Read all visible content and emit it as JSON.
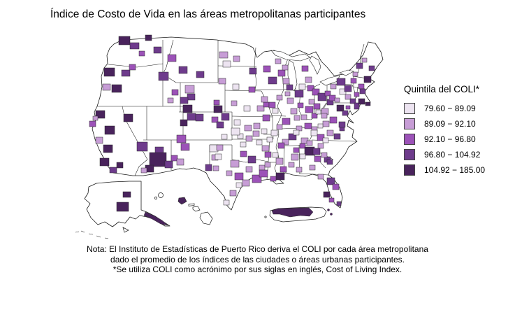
{
  "title": "Índice de Costo de Vida en las áreas metropolitanas participantes",
  "legend": {
    "title": "Quintila del COLI*",
    "entries": [
      {
        "label": "79.60 − 89.09",
        "color": "#EDE4F1"
      },
      {
        "label": "89.09 − 92.10",
        "color": "#C79DD6"
      },
      {
        "label": "92.10 − 96.80",
        "color": "#9C52B8"
      },
      {
        "label": "96.80 − 104.92",
        "color": "#6E3B8C"
      },
      {
        "label": "104.92 − 185.00",
        "color": "#49235C"
      }
    ]
  },
  "note_lines": [
    "Nota: El Instituto de Estadísticas de Puerto Rico deriva el COLI por cada área metropolitana",
    "dado el promedio de los índices de las ciudades o áreas urbanas participantes.",
    "*Se utiliza COLI como acrónimo por sus siglas en inglés, Cost of Living Index."
  ],
  "chart_data": {
    "type": "choropleth",
    "title": "Índice de Costo de Vida en las áreas metropolitanas participantes",
    "legend_title": "Quintila del COLI*",
    "classification": "quintiles",
    "quintiles": [
      {
        "q": 1,
        "range": "79.60 − 89.09",
        "color": "#EDE4F1"
      },
      {
        "q": 2,
        "range": "89.09 − 92.10",
        "color": "#C79DD6"
      },
      {
        "q": 3,
        "range": "92.10 − 96.80",
        "color": "#9C52B8"
      },
      {
        "q": 4,
        "range": "96.80 − 104.92",
        "color": "#6E3B8C"
      },
      {
        "q": 5,
        "range": "104.92 − 185.00",
        "color": "#49235C"
      }
    ],
    "geography": "Estados Unidos (48 estados contiguos, Alaska, Hawái y Puerto Rico)",
    "metro_patches": [
      [
        170,
        52,
        16,
        12,
        5
      ],
      [
        186,
        61,
        13,
        9,
        4
      ],
      [
        208,
        50,
        9,
        8,
        5
      ],
      [
        220,
        67,
        11,
        9,
        4
      ],
      [
        199,
        73,
        8,
        7,
        3
      ],
      [
        149,
        97,
        15,
        12,
        5
      ],
      [
        147,
        120,
        11,
        9,
        2
      ],
      [
        160,
        121,
        14,
        11,
        5
      ],
      [
        174,
        100,
        12,
        9,
        4
      ],
      [
        185,
        92,
        9,
        8,
        3
      ],
      [
        227,
        103,
        14,
        12,
        4
      ],
      [
        246,
        128,
        9,
        8,
        3
      ],
      [
        240,
        140,
        8,
        7,
        2
      ],
      [
        240,
        78,
        12,
        10,
        3
      ],
      [
        256,
        95,
        12,
        10,
        4
      ],
      [
        281,
        102,
        11,
        9,
        4
      ],
      [
        265,
        122,
        13,
        11,
        2
      ],
      [
        268,
        134,
        11,
        9,
        4
      ],
      [
        306,
        143,
        8,
        7,
        3
      ],
      [
        177,
        163,
        13,
        11,
        5
      ],
      [
        196,
        203,
        15,
        13,
        4
      ],
      [
        258,
        139,
        11,
        9,
        4
      ],
      [
        262,
        150,
        13,
        11,
        5
      ],
      [
        268,
        162,
        12,
        10,
        4
      ],
      [
        258,
        171,
        10,
        9,
        5
      ],
      [
        137,
        158,
        13,
        11,
        5
      ],
      [
        128,
        173,
        9,
        8,
        3
      ],
      [
        150,
        180,
        14,
        12,
        5
      ],
      [
        137,
        196,
        10,
        9,
        2
      ],
      [
        148,
        207,
        13,
        11,
        5
      ],
      [
        143,
        226,
        13,
        11,
        5
      ],
      [
        157,
        239,
        10,
        8,
        4
      ],
      [
        167,
        232,
        9,
        8,
        5
      ],
      [
        133,
        166,
        7,
        6,
        2
      ],
      [
        222,
        210,
        12,
        9,
        4
      ],
      [
        214,
        218,
        24,
        20,
        5
      ],
      [
        208,
        236,
        12,
        10,
        5
      ],
      [
        236,
        230,
        11,
        10,
        4
      ],
      [
        202,
        240,
        8,
        7,
        2
      ],
      [
        245,
        222,
        9,
        8,
        3
      ],
      [
        280,
        163,
        11,
        10,
        4
      ],
      [
        306,
        151,
        12,
        10,
        5
      ],
      [
        317,
        162,
        11,
        10,
        4
      ],
      [
        303,
        167,
        9,
        8,
        3
      ],
      [
        310,
        174,
        10,
        9,
        4
      ],
      [
        253,
        193,
        13,
        11,
        3
      ],
      [
        259,
        205,
        12,
        10,
        3
      ],
      [
        253,
        227,
        10,
        9,
        2
      ],
      [
        294,
        235,
        9,
        9,
        4
      ],
      [
        300,
        207,
        12,
        10,
        1
      ],
      [
        303,
        221,
        9,
        8,
        2
      ],
      [
        314,
        74,
        12,
        9,
        2
      ],
      [
        319,
        87,
        11,
        9,
        1
      ],
      [
        334,
        80,
        9,
        8,
        2
      ],
      [
        313,
        112,
        10,
        8,
        2
      ],
      [
        333,
        120,
        9,
        8,
        1
      ],
      [
        356,
        124,
        9,
        8,
        3
      ],
      [
        377,
        94,
        10,
        9,
        3
      ],
      [
        384,
        110,
        12,
        10,
        4
      ],
      [
        394,
        84,
        8,
        7,
        2
      ],
      [
        357,
        97,
        10,
        9,
        4
      ],
      [
        331,
        144,
        8,
        7,
        2
      ],
      [
        349,
        151,
        9,
        8,
        1
      ],
      [
        368,
        151,
        10,
        8,
        2
      ],
      [
        377,
        146,
        8,
        7,
        3
      ],
      [
        374,
        138,
        9,
        8,
        2
      ],
      [
        385,
        146,
        9,
        8,
        3
      ],
      [
        396,
        136,
        8,
        7,
        2
      ],
      [
        390,
        155,
        8,
        7,
        1
      ],
      [
        335,
        171,
        9,
        8,
        1
      ],
      [
        350,
        179,
        10,
        8,
        2
      ],
      [
        340,
        191,
        8,
        7,
        1
      ],
      [
        363,
        176,
        9,
        8,
        2
      ],
      [
        374,
        184,
        8,
        7,
        1
      ],
      [
        376,
        164,
        10,
        9,
        3
      ],
      [
        404,
        169,
        11,
        9,
        3
      ],
      [
        388,
        186,
        9,
        8,
        1
      ],
      [
        396,
        178,
        8,
        7,
        2
      ],
      [
        382,
        196,
        8,
        7,
        1
      ],
      [
        331,
        183,
        12,
        10,
        1
      ],
      [
        352,
        194,
        9,
        8,
        2
      ],
      [
        362,
        187,
        9,
        8,
        2
      ],
      [
        344,
        203,
        8,
        7,
        1
      ],
      [
        317,
        192,
        8,
        7,
        1
      ],
      [
        310,
        207,
        9,
        8,
        2
      ],
      [
        308,
        220,
        9,
        8,
        1
      ],
      [
        305,
        237,
        8,
        7,
        2
      ],
      [
        330,
        229,
        12,
        10,
        2
      ],
      [
        355,
        223,
        11,
        10,
        4
      ],
      [
        344,
        216,
        9,
        8,
        3
      ],
      [
        336,
        247,
        12,
        10,
        3
      ],
      [
        347,
        257,
        10,
        9,
        2
      ],
      [
        361,
        250,
        13,
        11,
        3
      ],
      [
        329,
        272,
        9,
        8,
        2
      ],
      [
        320,
        286,
        8,
        7,
        1
      ],
      [
        371,
        236,
        8,
        7,
        2
      ],
      [
        338,
        261,
        8,
        7,
        1
      ],
      [
        324,
        244,
        8,
        7,
        2
      ],
      [
        352,
        238,
        9,
        8,
        2
      ],
      [
        398,
        100,
        10,
        9,
        3
      ],
      [
        405,
        112,
        9,
        8,
        2
      ],
      [
        410,
        121,
        9,
        8,
        4
      ],
      [
        404,
        93,
        8,
        7,
        2
      ],
      [
        422,
        129,
        12,
        10,
        4
      ],
      [
        411,
        140,
        9,
        8,
        2
      ],
      [
        416,
        155,
        9,
        8,
        2
      ],
      [
        426,
        147,
        8,
        7,
        3
      ],
      [
        408,
        131,
        7,
        6,
        2
      ],
      [
        421,
        165,
        8,
        7,
        2
      ],
      [
        432,
        94,
        9,
        8,
        3
      ],
      [
        437,
        110,
        9,
        8,
        2
      ],
      [
        428,
        120,
        9,
        8,
        1
      ],
      [
        440,
        122,
        9,
        8,
        3
      ],
      [
        447,
        127,
        10,
        9,
        3
      ],
      [
        437,
        152,
        11,
        9,
        3
      ],
      [
        431,
        164,
        8,
        7,
        2
      ],
      [
        442,
        142,
        8,
        7,
        2
      ],
      [
        446,
        162,
        8,
        7,
        3
      ],
      [
        455,
        133,
        12,
        11,
        4
      ],
      [
        449,
        148,
        9,
        8,
        3
      ],
      [
        460,
        155,
        10,
        9,
        2
      ],
      [
        468,
        142,
        9,
        8,
        4
      ],
      [
        465,
        130,
        8,
        7,
        3
      ],
      [
        436,
        176,
        10,
        8,
        3
      ],
      [
        446,
        181,
        8,
        7,
        2
      ],
      [
        424,
        180,
        8,
        7,
        2
      ],
      [
        413,
        191,
        11,
        9,
        4
      ],
      [
        404,
        199,
        9,
        8,
        2
      ],
      [
        431,
        197,
        10,
        8,
        2
      ],
      [
        429,
        205,
        8,
        7,
        3
      ],
      [
        398,
        204,
        9,
        8,
        3
      ],
      [
        420,
        186,
        8,
        7,
        1
      ],
      [
        375,
        208,
        10,
        8,
        2
      ],
      [
        379,
        217,
        9,
        8,
        3
      ],
      [
        367,
        200,
        8,
        7,
        1
      ],
      [
        395,
        226,
        10,
        9,
        2
      ],
      [
        401,
        238,
        9,
        8,
        3
      ],
      [
        390,
        218,
        8,
        7,
        1
      ],
      [
        417,
        220,
        10,
        9,
        2
      ],
      [
        420,
        211,
        8,
        7,
        3
      ],
      [
        413,
        232,
        8,
        7,
        2
      ],
      [
        424,
        239,
        8,
        7,
        2
      ],
      [
        371,
        243,
        12,
        10,
        3
      ],
      [
        395,
        247,
        12,
        10,
        5
      ],
      [
        387,
        252,
        8,
        7,
        3
      ],
      [
        379,
        232,
        8,
        7,
        2
      ],
      [
        436,
        210,
        14,
        12,
        5
      ],
      [
        450,
        223,
        9,
        8,
        3
      ],
      [
        443,
        236,
        8,
        7,
        2
      ],
      [
        464,
        224,
        9,
        8,
        4
      ],
      [
        455,
        205,
        8,
        7,
        2
      ],
      [
        429,
        220,
        8,
        7,
        1
      ],
      [
        468,
        254,
        11,
        10,
        4
      ],
      [
        476,
        263,
        9,
        8,
        3
      ],
      [
        463,
        274,
        9,
        8,
        5
      ],
      [
        471,
        283,
        7,
        6,
        3
      ],
      [
        482,
        288,
        6,
        6,
        4
      ],
      [
        455,
        249,
        8,
        7,
        2
      ],
      [
        448,
        212,
        10,
        9,
        4
      ],
      [
        460,
        218,
        8,
        7,
        2
      ],
      [
        468,
        228,
        8,
        7,
        4
      ],
      [
        445,
        186,
        9,
        8,
        1
      ],
      [
        454,
        192,
        10,
        9,
        3
      ],
      [
        468,
        186,
        9,
        8,
        2
      ],
      [
        478,
        191,
        9,
        8,
        4
      ],
      [
        486,
        181,
        7,
        6,
        4
      ],
      [
        439,
        201,
        8,
        7,
        2
      ],
      [
        462,
        197,
        8,
        7,
        1
      ],
      [
        472,
        167,
        10,
        9,
        3
      ],
      [
        485,
        174,
        9,
        8,
        4
      ],
      [
        462,
        173,
        9,
        8,
        2
      ],
      [
        455,
        177,
        7,
        6,
        1
      ],
      [
        460,
        162,
        8,
        7,
        2
      ],
      [
        452,
        157,
        7,
        6,
        1
      ],
      [
        482,
        150,
        10,
        9,
        5
      ],
      [
        490,
        158,
        8,
        7,
        4
      ],
      [
        495,
        151,
        6,
        5,
        3
      ],
      [
        486,
        127,
        9,
        8,
        1
      ],
      [
        494,
        135,
        8,
        7,
        2
      ],
      [
        471,
        136,
        9,
        8,
        3
      ],
      [
        501,
        141,
        8,
        7,
        4
      ],
      [
        479,
        140,
        7,
        6,
        2
      ],
      [
        507,
        147,
        7,
        9,
        4
      ],
      [
        482,
        112,
        12,
        10,
        4
      ],
      [
        493,
        122,
        10,
        9,
        4
      ],
      [
        473,
        120,
        8,
        7,
        2
      ],
      [
        513,
        141,
        9,
        8,
        5
      ],
      [
        523,
        146,
        7,
        5,
        5
      ],
      [
        502,
        112,
        8,
        7,
        3
      ],
      [
        510,
        90,
        9,
        8,
        4
      ],
      [
        518,
        83,
        7,
        6,
        2
      ],
      [
        521,
        109,
        10,
        9,
        5
      ],
      [
        513,
        120,
        8,
        7,
        3
      ],
      [
        515,
        127,
        8,
        7,
        4
      ],
      [
        507,
        132,
        7,
        6,
        3
      ],
      [
        528,
        94,
        8,
        7,
        4
      ],
      [
        505,
        103,
        7,
        6,
        2
      ],
      [
        176,
        274,
        11,
        8,
        5
      ],
      [
        167,
        289,
        17,
        13,
        5
      ]
    ]
  }
}
